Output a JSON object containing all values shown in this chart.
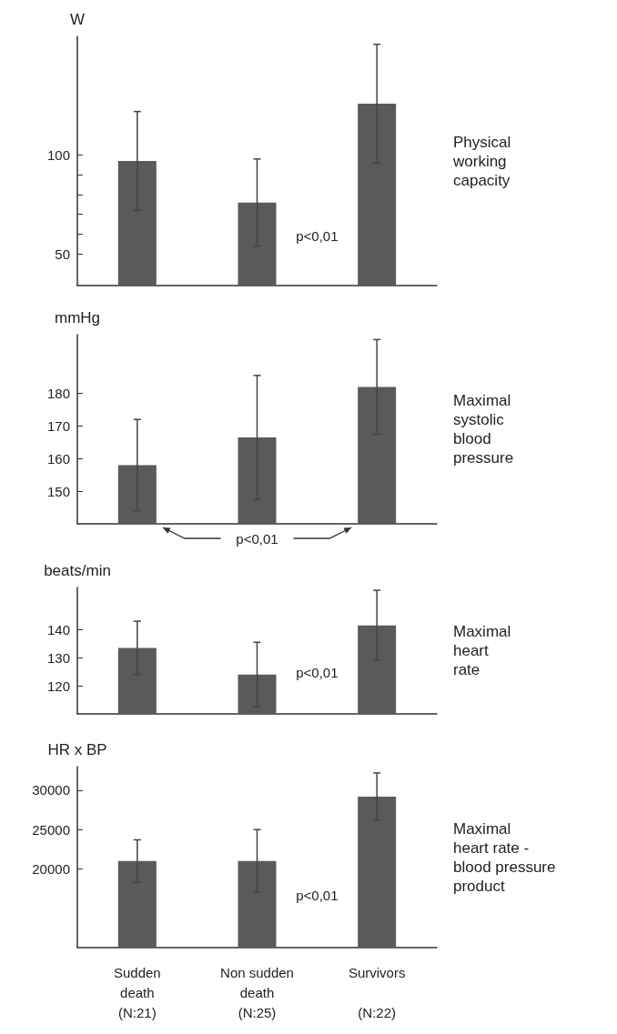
{
  "chart_data": [
    {
      "type": "bar",
      "ylabel": "W",
      "values": [
        97,
        76,
        126
      ],
      "errors": [
        25,
        22,
        30
      ],
      "color": "#5a5a5a",
      "ylim": [
        34,
        160
      ],
      "yticks": [
        50,
        {
          "value": 60,
          "label": null
        },
        {
          "value": 70,
          "label": null
        },
        {
          "value": 80,
          "label": null
        },
        {
          "value": 90,
          "label": null
        },
        100
      ],
      "tick_labels": "y",
      "annotations": [
        "Physical\nworking\ncapacity",
        "p<0,01"
      ]
    },
    {
      "type": "bar",
      "ylabel": "mmHg",
      "values": [
        158,
        166.5,
        182
      ],
      "errors": [
        14,
        19,
        14.5
      ],
      "color": "#5a5a5a",
      "ylim": [
        140,
        198
      ],
      "yticks": [
        150,
        160,
        170,
        180
      ],
      "tick_labels": "y",
      "annotations": [
        "Maximal\nsystolic\nblood\npressure",
        "p<0,01"
      ]
    },
    {
      "type": "bar",
      "ylabel": "beats/min",
      "values": [
        133.5,
        124,
        141.5
      ],
      "errors": [
        9.5,
        11.5,
        12.5
      ],
      "color": "#5a5a5a",
      "ylim": [
        110,
        155
      ],
      "yticks": [
        120,
        130,
        140
      ],
      "tick_labels": "y",
      "annotations": [
        "Maximal\nheart\nrate",
        "p<0,01"
      ]
    },
    {
      "type": "bar",
      "ylabel": "HR x BP",
      "categories": [
        "Sudden\ndeath\n(N:21)",
        "Non sudden\ndeath\n(N:25)",
        "Survivors\n\n(N:22)"
      ],
      "values": [
        21000,
        21000,
        29200
      ],
      "errors": [
        2700,
        4000,
        3000
      ],
      "color": "#5a5a5a",
      "ylim": [
        10000,
        33000
      ],
      "yticks": [
        20000,
        25000,
        30000
      ],
      "annotations": [
        "Maximal\nheart rate -\nblood pressure\nproduct",
        "p<0,01"
      ]
    }
  ]
}
